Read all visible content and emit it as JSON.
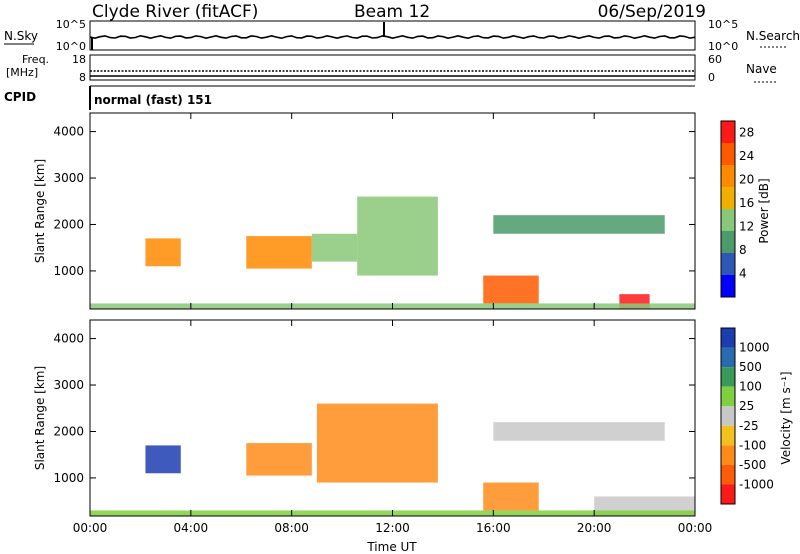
{
  "header": {
    "station": "Clyde River (fitACF)",
    "beam": "Beam 12",
    "date": "06/Sep/2019"
  },
  "strips": {
    "nsky_label": "N.Sky",
    "nsearch_label": "N.Search",
    "noise_ticks_left": [
      "10^5",
      "10^0"
    ],
    "noise_ticks_right": [
      "10^5",
      "10^0"
    ],
    "freq_label_1": "Freq.",
    "freq_label_2": "[MHz]",
    "freq_ticks": [
      "18",
      "8"
    ],
    "nave_label": "Nave",
    "nave_ticks": [
      "60",
      "0"
    ],
    "cpid_label": "CPID",
    "cpid_text": "normal (fast) 151"
  },
  "colors": {
    "power_scale": [
      "#0000ff",
      "#2f57b7",
      "#4a9a6a",
      "#88c878",
      "#f0b000",
      "#ff8a00",
      "#ff5a00",
      "#ff1a1a"
    ],
    "velocity_scale": [
      "#1c3db0",
      "#2a6bb0",
      "#3a9a5a",
      "#7fd040",
      "#c8c8c8",
      "#f3c11e",
      "#ff8c1a",
      "#ff5c0a",
      "#ff1a1a"
    ]
  },
  "chart_data": [
    {
      "type": "heatmap",
      "name": "power",
      "ylabel": "Slant Range [km]",
      "xlabel": "",
      "x_ticks": [
        "00:00",
        "04:00",
        "08:00",
        "12:00",
        "16:00",
        "20:00",
        "00:00"
      ],
      "y_ticks": [
        "1000",
        "2000",
        "3000",
        "4000"
      ],
      "xlim_hours": [
        0,
        24
      ],
      "ylim_km": [
        180,
        4400
      ],
      "colorbar_label": "Power [dB]",
      "colorbar_ticks": [
        "4",
        "8",
        "12",
        "16",
        "20",
        "24",
        "28"
      ],
      "colorbar_range": [
        0,
        30
      ],
      "regions": [
        {
          "t": [
            2.2,
            3.6
          ],
          "r": [
            1100,
            1700
          ],
          "level": 22
        },
        {
          "t": [
            6.2,
            8.8
          ],
          "r": [
            1050,
            1750
          ],
          "level": 20
        },
        {
          "t": [
            8.8,
            10.6
          ],
          "r": [
            1200,
            1800
          ],
          "level": 12
        },
        {
          "t": [
            10.6,
            13.8
          ],
          "r": [
            900,
            2600
          ],
          "level": 14
        },
        {
          "t": [
            15.6,
            17.8
          ],
          "r": [
            300,
            900
          ],
          "level": 24
        },
        {
          "t": [
            16.0,
            22.8
          ],
          "r": [
            1800,
            2200
          ],
          "level": 8
        },
        {
          "t": [
            21.0,
            22.2
          ],
          "r": [
            180,
            500
          ],
          "level": 28
        },
        {
          "t": [
            0.0,
            24.0
          ],
          "r": [
            180,
            300
          ],
          "level": 12
        }
      ]
    },
    {
      "type": "heatmap",
      "name": "velocity",
      "ylabel": "Slant Range [km]",
      "xlabel": "Time UT",
      "x_ticks": [
        "00:00",
        "04:00",
        "08:00",
        "12:00",
        "16:00",
        "20:00",
        "00:00"
      ],
      "y_ticks": [
        "1000",
        "2000",
        "3000",
        "4000"
      ],
      "xlim_hours": [
        0,
        24
      ],
      "ylim_km": [
        180,
        4400
      ],
      "colorbar_label": "Velocity [m s⁻¹]",
      "colorbar_ticks": [
        "1000",
        "500",
        "100",
        "25",
        "-25",
        "-100",
        "-500",
        "-1000"
      ],
      "regions": [
        {
          "t": [
            2.2,
            3.6
          ],
          "r": [
            1100,
            1700
          ],
          "level": 800
        },
        {
          "t": [
            6.2,
            8.8
          ],
          "r": [
            1050,
            1750
          ],
          "level": -300
        },
        {
          "t": [
            9.0,
            13.8
          ],
          "r": [
            900,
            2600
          ],
          "level": -350
        },
        {
          "t": [
            15.6,
            17.8
          ],
          "r": [
            300,
            900
          ],
          "level": -250
        },
        {
          "t": [
            16.0,
            22.8
          ],
          "r": [
            1800,
            2200
          ],
          "level": 0
        },
        {
          "t": [
            20.0,
            24.0
          ],
          "r": [
            180,
            600
          ],
          "level": 0
        },
        {
          "t": [
            0.0,
            24.0
          ],
          "r": [
            180,
            300
          ],
          "level": 50
        }
      ]
    }
  ]
}
